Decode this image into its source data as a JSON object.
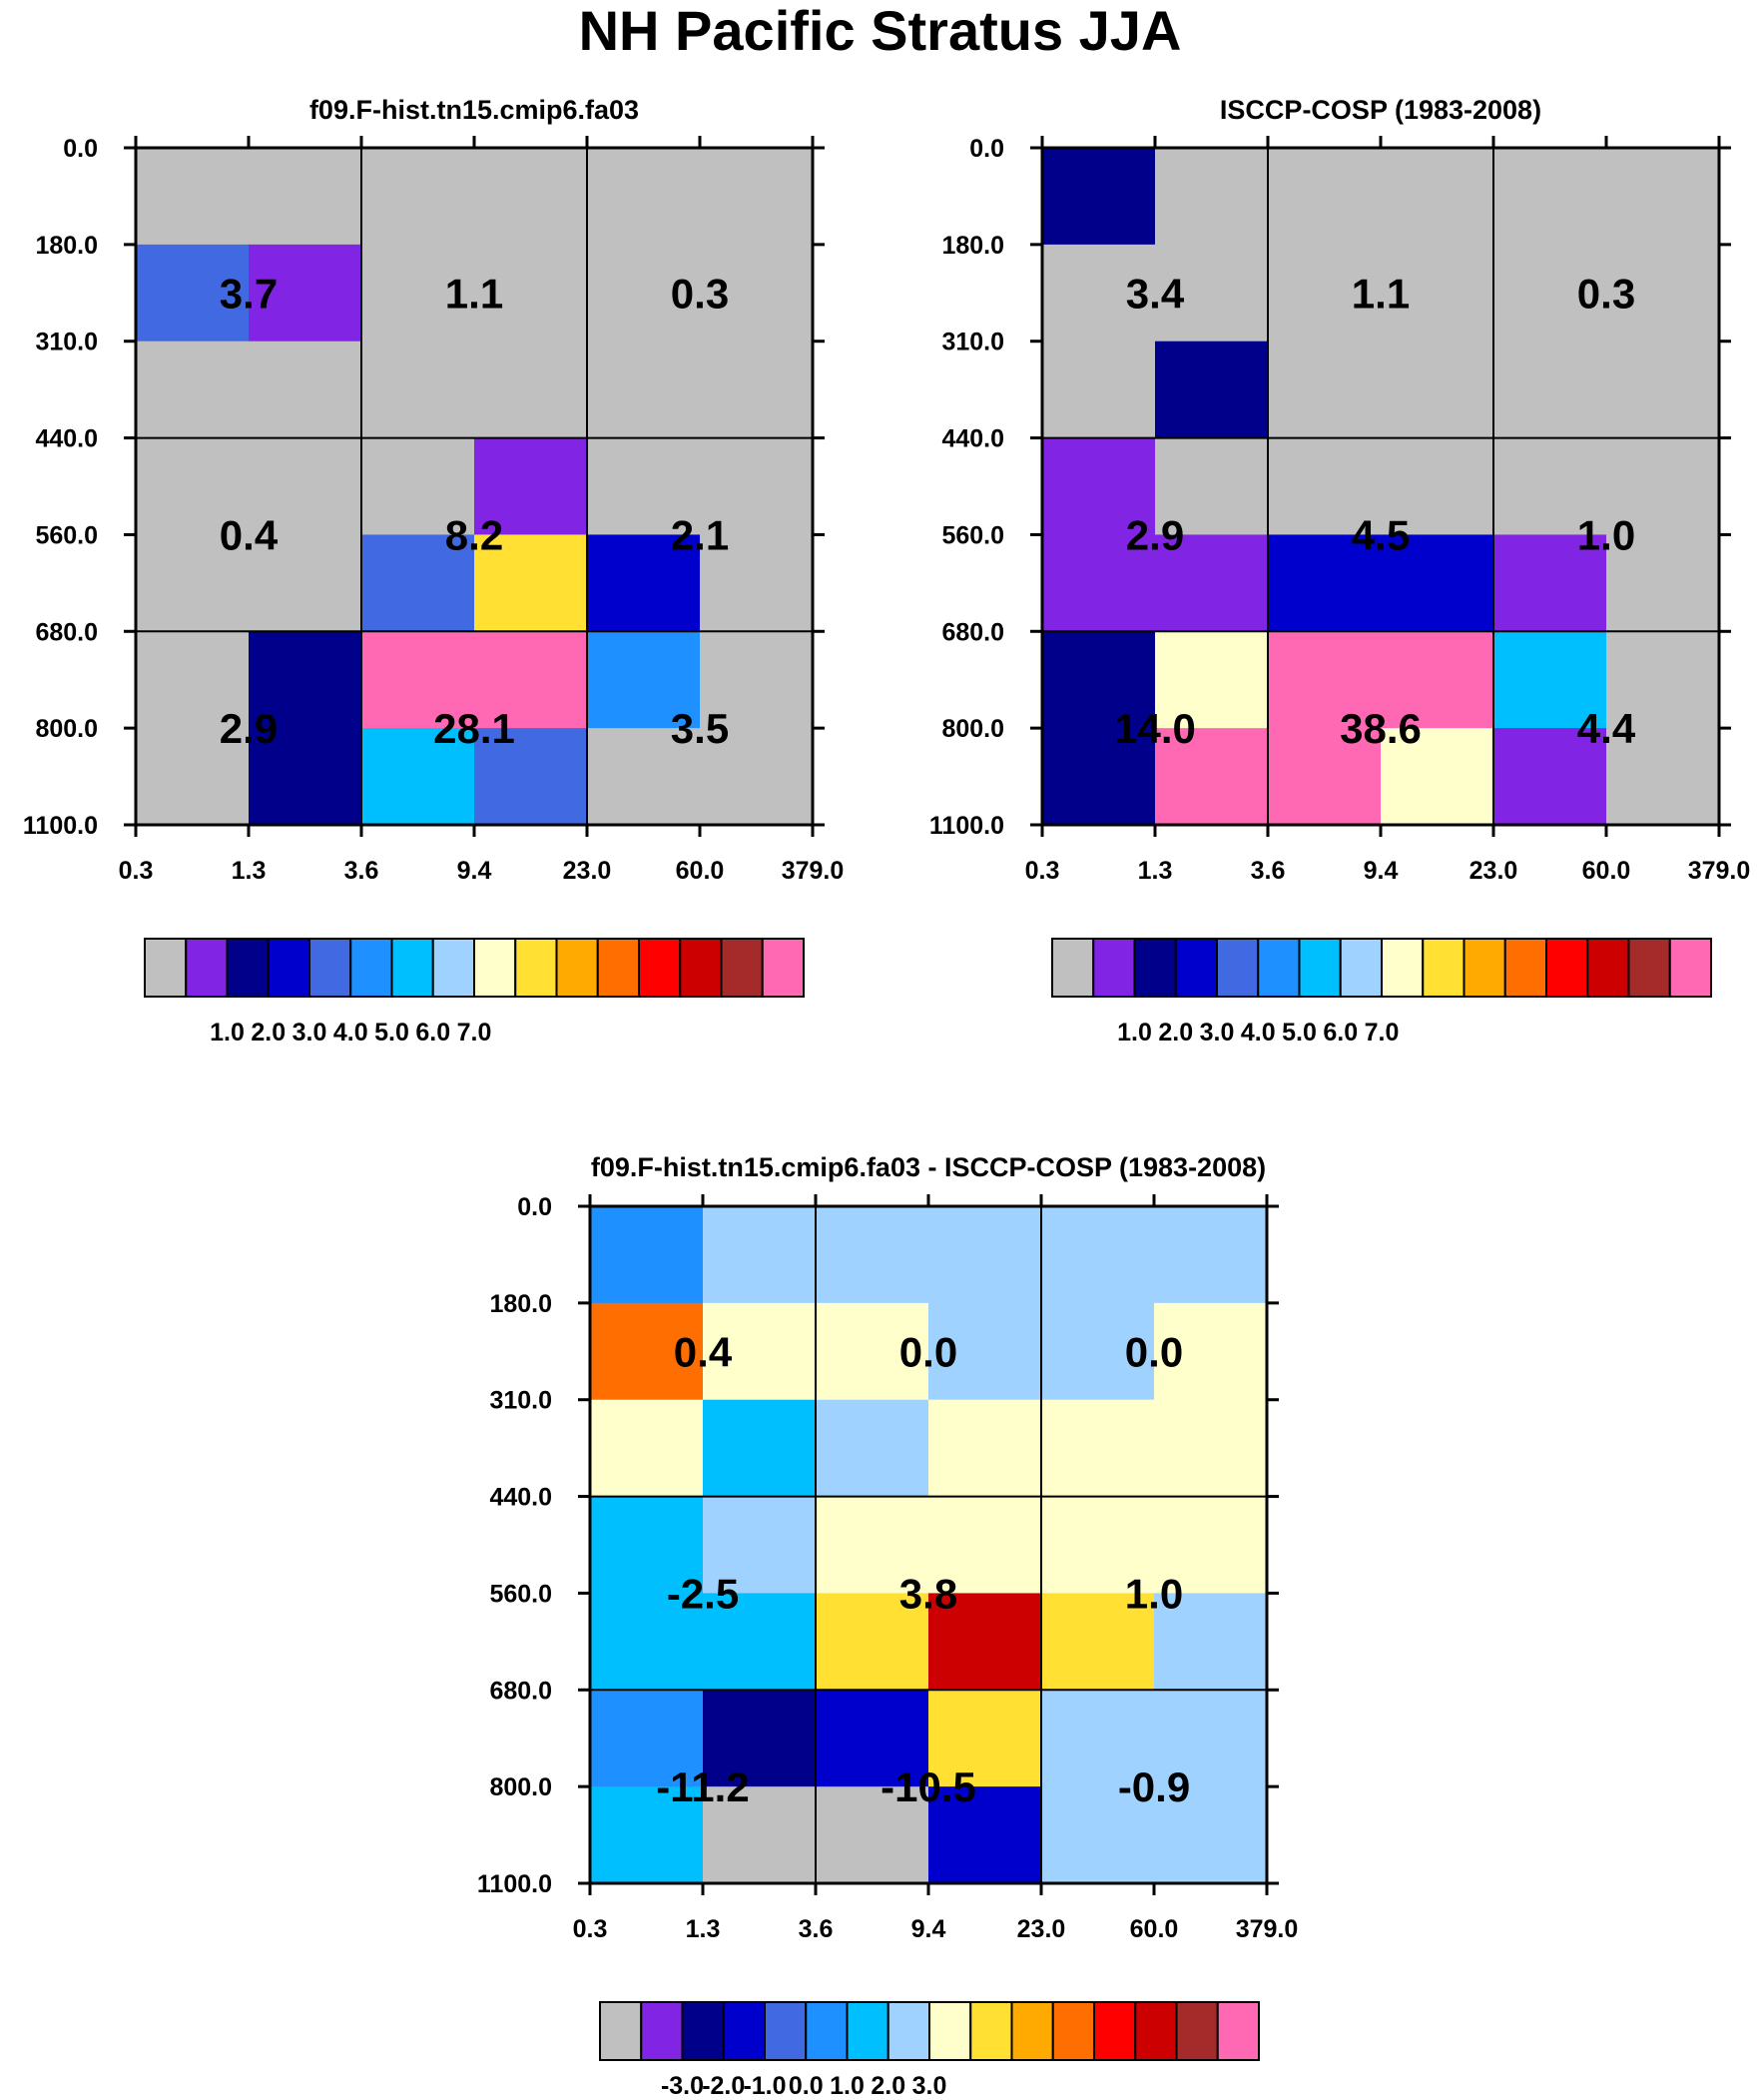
{
  "title": "NH Pacific Stratus JJA",
  "palette": [
    "#c0c0c0",
    "#8224e3",
    "#00008a",
    "#0000cc",
    "#4169e1",
    "#1e90ff",
    "#00bfff",
    "#a0d2ff",
    "#ffffcc",
    "#ffe033",
    "#ffaa00",
    "#ff6e00",
    "#ff0000",
    "#cc0000",
    "#a52a2a",
    "#ff69b4"
  ],
  "chart_data": [
    {
      "type": "heatmap",
      "title": "f09.F-hist.tn15.cmip6.fa03",
      "x_ticks": [
        "0.3",
        "1.3",
        "3.6",
        "9.4",
        "23.0",
        "60.0",
        "379.0"
      ],
      "y_ticks": [
        "0.0",
        "180.0",
        "310.0",
        "440.0",
        "560.0",
        "680.0",
        "800.0",
        "1100.0"
      ],
      "cells": [
        [
          0,
          0,
          0,
          0,
          0,
          0
        ],
        [
          4,
          1,
          0,
          0,
          0,
          0
        ],
        [
          0,
          0,
          0,
          0,
          0,
          0
        ],
        [
          0,
          0,
          0,
          1,
          0,
          0
        ],
        [
          0,
          0,
          4,
          9,
          3,
          0
        ],
        [
          0,
          2,
          15,
          15,
          5,
          0
        ],
        [
          0,
          2,
          6,
          4,
          0,
          0
        ]
      ],
      "block_labels": [
        [
          "3.7",
          "1.1",
          "0.3"
        ],
        [
          "0.4",
          "8.2",
          "2.1"
        ],
        [
          "2.9",
          "28.1",
          "3.5"
        ]
      ],
      "colorbar_labels": [
        "1.0",
        "2.0",
        "3.0",
        "4.0",
        "5.0",
        "6.0",
        "7.0"
      ]
    },
    {
      "type": "heatmap",
      "title": "ISCCP-COSP (1983-2008)",
      "x_ticks": [
        "0.3",
        "1.3",
        "3.6",
        "9.4",
        "23.0",
        "60.0",
        "379.0"
      ],
      "y_ticks": [
        "0.0",
        "180.0",
        "310.0",
        "440.0",
        "560.0",
        "680.0",
        "800.0",
        "1100.0"
      ],
      "cells": [
        [
          2,
          0,
          0,
          0,
          0,
          0
        ],
        [
          0,
          0,
          0,
          0,
          0,
          0
        ],
        [
          0,
          2,
          0,
          0,
          0,
          0
        ],
        [
          1,
          0,
          0,
          0,
          0,
          0
        ],
        [
          1,
          1,
          3,
          3,
          1,
          0
        ],
        [
          2,
          8,
          15,
          15,
          6,
          0
        ],
        [
          2,
          15,
          15,
          8,
          1,
          0
        ]
      ],
      "block_labels": [
        [
          "3.4",
          "1.1",
          "0.3"
        ],
        [
          "2.9",
          "4.5",
          "1.0"
        ],
        [
          "14.0",
          "38.6",
          "4.4"
        ]
      ],
      "colorbar_labels": [
        "1.0",
        "2.0",
        "3.0",
        "4.0",
        "5.0",
        "6.0",
        "7.0"
      ]
    },
    {
      "type": "heatmap",
      "title": "f09.F-hist.tn15.cmip6.fa03 - ISCCP-COSP (1983-2008)",
      "x_ticks": [
        "0.3",
        "1.3",
        "3.6",
        "9.4",
        "23.0",
        "60.0",
        "379.0"
      ],
      "y_ticks": [
        "0.0",
        "180.0",
        "310.0",
        "440.0",
        "560.0",
        "680.0",
        "800.0",
        "1100.0"
      ],
      "cells": [
        [
          5,
          7,
          7,
          7,
          7,
          7
        ],
        [
          11,
          8,
          8,
          7,
          7,
          8
        ],
        [
          8,
          6,
          7,
          8,
          8,
          8
        ],
        [
          6,
          7,
          8,
          8,
          8,
          8
        ],
        [
          6,
          6,
          9,
          13,
          9,
          7
        ],
        [
          5,
          2,
          3,
          9,
          7,
          7
        ],
        [
          6,
          0,
          0,
          3,
          7,
          7
        ]
      ],
      "block_labels": [
        [
          "0.4",
          "0.0",
          "0.0"
        ],
        [
          "-2.5",
          "3.8",
          "1.0"
        ],
        [
          "-11.2",
          "-10.5",
          "-0.9"
        ]
      ],
      "colorbar_labels": [
        "-3.0",
        "-2.0",
        "-1.0",
        "0.0",
        "1.0",
        "2.0",
        "3.0"
      ]
    }
  ]
}
